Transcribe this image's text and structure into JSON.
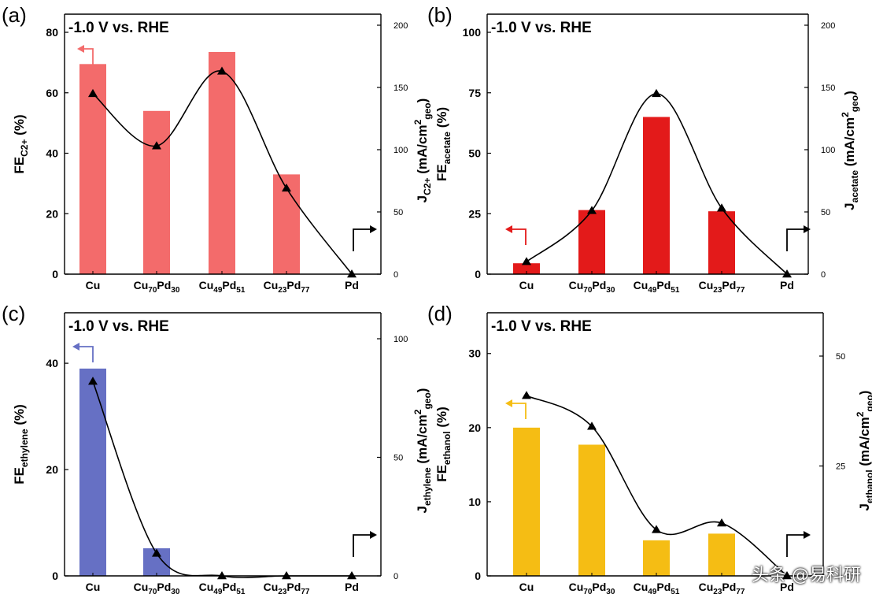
{
  "watermark": "头条 @易科研",
  "colors": {
    "a": "#f36b6b",
    "b": "#e31a1a",
    "c": "#6670c4",
    "d": "#f5bd14",
    "axis": "#000000",
    "line": "#000000"
  },
  "chart_data": [
    {
      "panel_label": "(a)",
      "type": "bar",
      "annotation": "-1.0 V vs. RHE",
      "categories": [
        [
          "Cu"
        ],
        [
          "Cu",
          "70",
          "Pd",
          "30"
        ],
        [
          "Cu",
          "49",
          "Pd",
          "51"
        ],
        [
          "Cu",
          "23",
          "Pd",
          "77"
        ],
        [
          "Pd"
        ]
      ],
      "bar_values": [
        69.5,
        54,
        73.5,
        33,
        0
      ],
      "line_values": [
        145,
        103,
        163,
        69,
        0
      ],
      "ylabel_left": {
        "main": "FE",
        "sub": "C2+",
        "tail": " (%)"
      },
      "ylabel_right": {
        "main": "J",
        "sub": "C2+",
        "tail": " (mA/cm",
        "sup": "2",
        "sub2": "geo",
        "close": ")"
      },
      "ylim_left": [
        0,
        80
      ],
      "yticks_left": [
        0,
        20,
        40,
        60,
        80
      ],
      "ylim_right": [
        0,
        200
      ],
      "yticks_right": [
        0,
        50,
        100,
        150,
        200
      ],
      "left_axis_max": 86
    },
    {
      "panel_label": "(b)",
      "type": "bar",
      "annotation": "-1.0 V vs. RHE",
      "categories": [
        [
          "Cu"
        ],
        [
          "Cu",
          "70",
          "Pd",
          "30"
        ],
        [
          "Cu",
          "49",
          "Pd",
          "51"
        ],
        [
          "Cu",
          "23",
          "Pd",
          "77"
        ],
        [
          "Pd"
        ]
      ],
      "bar_values": [
        4.5,
        26.5,
        65,
        26,
        0
      ],
      "line_values": [
        10,
        51,
        145,
        53,
        0
      ],
      "ylabel_left": {
        "main": "FE",
        "sub": "acetate",
        "tail": " (%)"
      },
      "ylabel_right": {
        "main": "J",
        "sub": "acetate",
        "tail": " (mA/cm",
        "sup": "2",
        "sub2": "geo",
        "close": ")"
      },
      "ylim_left": [
        0,
        100
      ],
      "yticks_left": [
        0,
        25,
        50,
        75,
        100
      ],
      "ylim_right": [
        0,
        200
      ],
      "yticks_right": [
        0,
        50,
        100,
        150,
        200
      ],
      "left_axis_max": 107.5
    },
    {
      "panel_label": "(c)",
      "type": "bar",
      "annotation": "-1.0 V vs. RHE",
      "categories": [
        [
          "Cu"
        ],
        [
          "Cu",
          "70",
          "Pd",
          "30"
        ],
        [
          "Cu",
          "49",
          "Pd",
          "51"
        ],
        [
          "Cu",
          "23",
          "Pd",
          "77"
        ],
        [
          "Pd"
        ]
      ],
      "bar_values": [
        39,
        5.2,
        0,
        0,
        0
      ],
      "line_values": [
        82,
        9.5,
        0,
        0,
        0
      ],
      "ylabel_left": {
        "main": "FE",
        "sub": "ethylene",
        "tail": " (%)"
      },
      "ylabel_right": {
        "main": "J",
        "sub": "ethylene",
        "tail": " (mA/cm",
        "sup": "2",
        "sub2": "geo",
        "close": ")"
      },
      "ylim_left": [
        0,
        40
      ],
      "yticks_left": [
        0,
        20,
        40
      ],
      "ylim_right": [
        0,
        100
      ],
      "yticks_right": [
        0,
        50,
        100
      ],
      "left_axis_max": 49.5
    },
    {
      "panel_label": "(d)",
      "type": "bar",
      "annotation": "-1.0 V vs. RHE",
      "categories": [
        [
          "Cu"
        ],
        [
          "Cu",
          "70",
          "Pd",
          "30"
        ],
        [
          "Cu",
          "49",
          "Pd",
          "51"
        ],
        [
          "Cu",
          "23",
          "Pd",
          "77"
        ],
        [
          "Pd"
        ]
      ],
      "bar_values": [
        20,
        17.7,
        4.8,
        5.7,
        0
      ],
      "line_values": [
        41,
        34,
        10.5,
        12,
        0
      ],
      "ylabel_left": {
        "main": "FE",
        "sub": "ethanol",
        "tail": " (%)"
      },
      "ylabel_right": {
        "main": "J",
        "sub": "ethanol",
        "tail": " (mA/cm",
        "sup": "2",
        "sub2": "geo",
        "close": ")"
      },
      "ylim_left": [
        0,
        30
      ],
      "yticks_left": [
        0,
        10,
        20,
        30
      ],
      "ylim_right": [
        0,
        50
      ],
      "yticks_right": [
        25,
        50
      ],
      "left_axis_max": 35.5
    }
  ]
}
